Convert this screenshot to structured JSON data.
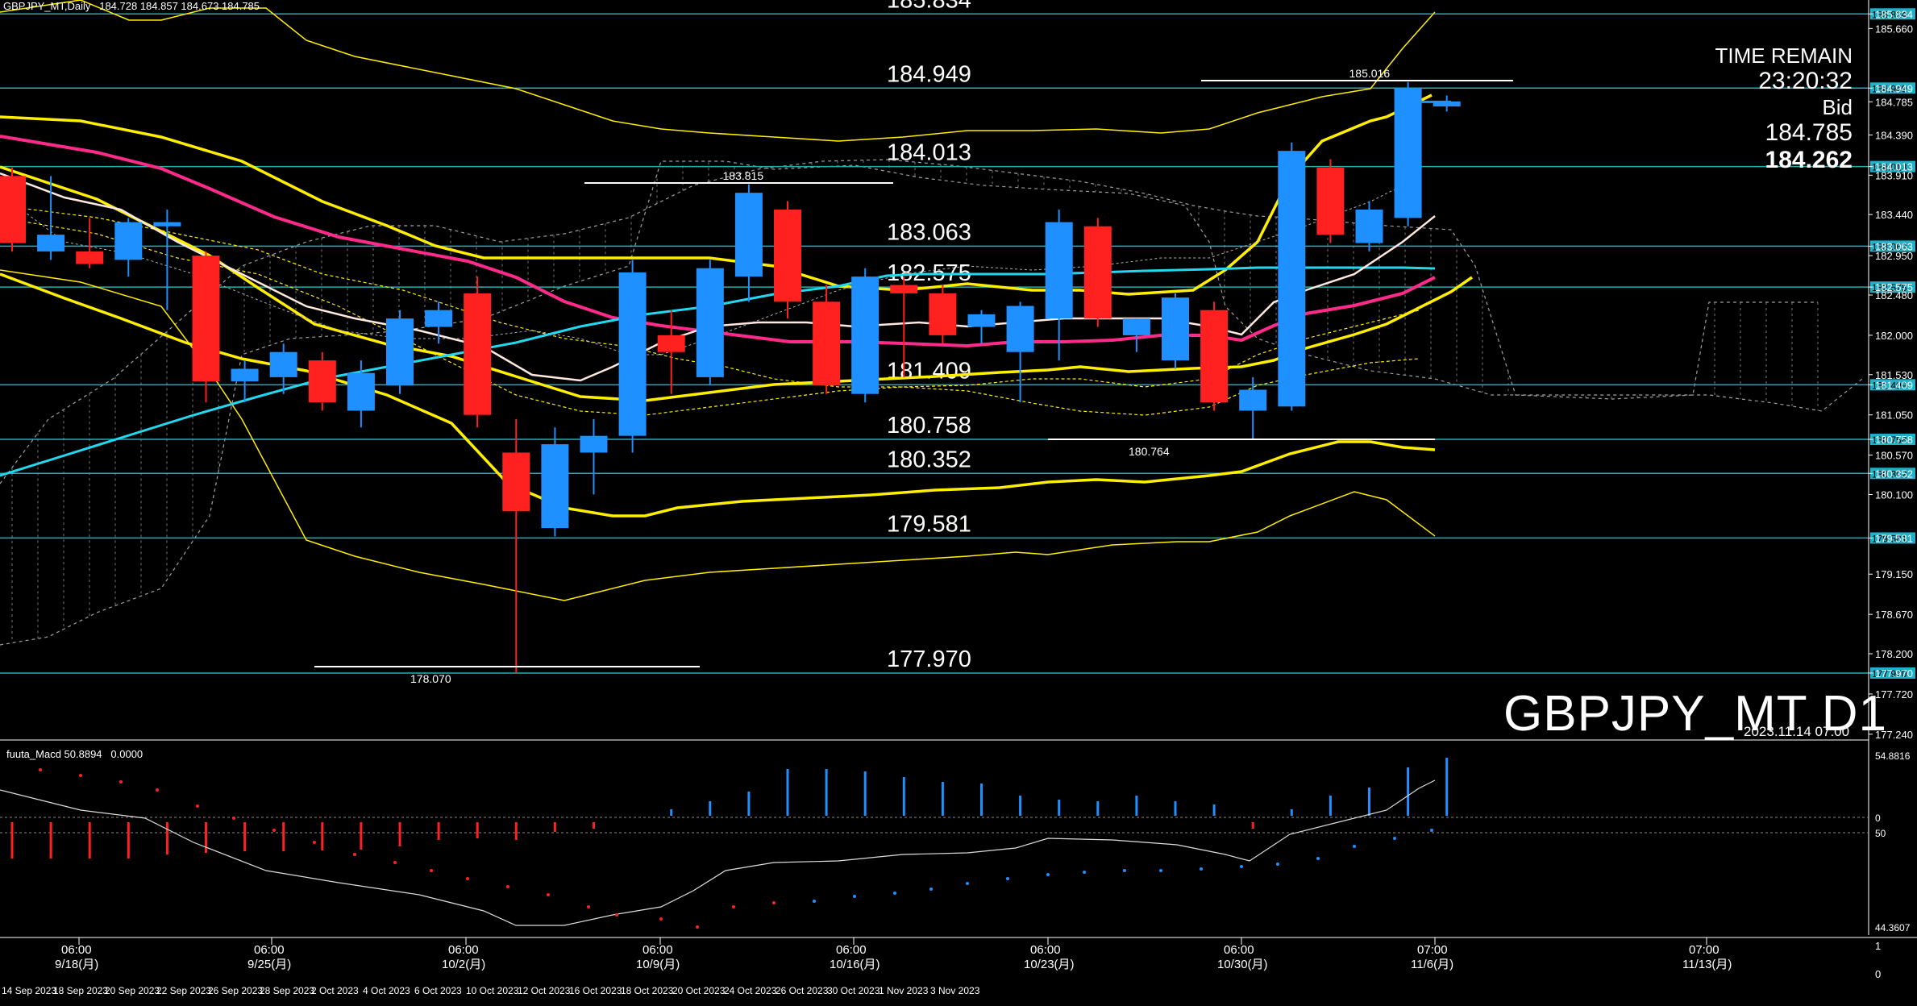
{
  "header": {
    "title": "GBPJPY_MT,Daily",
    "ohlc": "184.728 184.857 184.673 184.785"
  },
  "overlay": {
    "time_remain_label": "TIME REMAIN",
    "time_remain_value": "23:20:32",
    "bid_label": "Bid",
    "bid_value": "184.785",
    "highlight_value": "184.262",
    "symbol_label": "GBPJPY_MT D1",
    "timestamp": "2023.11.14 07:00"
  },
  "macd": {
    "label": "fuuta_Macd 50.8894",
    "value2": "0.0000",
    "scale": [
      "54.8816",
      "0",
      "50",
      "44.3607"
    ]
  },
  "level_lines": [
    {
      "price": 185.834,
      "label": "185.834"
    },
    {
      "price": 184.949,
      "label": "184.949"
    },
    {
      "price": 184.013,
      "label": "184.013"
    },
    {
      "price": 183.063,
      "label": "183.063"
    },
    {
      "price": 182.575,
      "label": "182.575"
    },
    {
      "price": 181.409,
      "label": "181.409"
    },
    {
      "price": 180.758,
      "label": "180.758"
    },
    {
      "price": 180.352,
      "label": "180.352"
    },
    {
      "price": 179.581,
      "label": "179.581"
    },
    {
      "price": 177.97,
      "label": "177.970"
    }
  ],
  "price_axis": [
    "185.834",
    "185.660",
    "184.949",
    "184.785",
    "184.390",
    "184.013",
    "183.910",
    "183.440",
    "183.063",
    "182.950",
    "182.575",
    "182.480",
    "182.000",
    "181.530",
    "181.409",
    "181.050",
    "180.758",
    "180.570",
    "180.352",
    "180.100",
    "179.581",
    "179.150",
    "178.670",
    "178.200",
    "177.970",
    "177.720",
    "177.240"
  ],
  "swing_labels": [
    {
      "label": "185.016"
    },
    {
      "label": "183.815"
    },
    {
      "label": "180.764"
    },
    {
      "label": "178.070"
    }
  ],
  "time_axis": {
    "major": [
      {
        "time": "06:00",
        "date": "9/18(月)"
      },
      {
        "time": "06:00",
        "date": "9/25(月)"
      },
      {
        "time": "06:00",
        "date": "10/2(月)"
      },
      {
        "time": "06:00",
        "date": "10/9(月)"
      },
      {
        "time": "06:00",
        "date": "10/16(月)"
      },
      {
        "time": "06:00",
        "date": "10/23(月)"
      },
      {
        "time": "06:00",
        "date": "10/30(月)"
      },
      {
        "time": "07:00",
        "date": "11/6(月)"
      },
      {
        "time": "07:00",
        "date": "11/13(月)"
      }
    ],
    "minor": [
      "14 Sep 2023",
      "18 Sep 2023",
      "20 Sep 2023",
      "22 Sep 2023",
      "26 Sep 2023",
      "28 Sep 2023",
      "2 Oct 2023",
      "4 Oct 2023",
      "6 Oct 2023",
      "10 Oct 2023",
      "12 Oct 2023",
      "16 Oct 2023",
      "18 Oct 2023",
      "20 Oct 2023",
      "24 Oct 2023",
      "26 Oct 2023",
      "30 Oct 2023",
      "1 Nov 2023",
      "3 Nov 2023"
    ],
    "right_scale": [
      "1",
      "0"
    ]
  },
  "candles": [
    {
      "o": 183.9,
      "h": 184.0,
      "l": 183.0,
      "c": 183.1
    },
    {
      "o": 183.0,
      "h": 183.9,
      "l": 182.9,
      "c": 183.2
    },
    {
      "o": 183.0,
      "h": 183.4,
      "l": 182.8,
      "c": 182.85
    },
    {
      "o": 182.9,
      "h": 183.4,
      "l": 182.7,
      "c": 183.35
    },
    {
      "o": 183.3,
      "h": 183.5,
      "l": 182.3,
      "c": 183.35
    },
    {
      "o": 182.95,
      "h": 183.0,
      "l": 181.2,
      "c": 181.45
    },
    {
      "o": 181.45,
      "h": 181.7,
      "l": 181.2,
      "c": 181.6
    },
    {
      "o": 181.5,
      "h": 181.9,
      "l": 181.3,
      "c": 181.8
    },
    {
      "o": 181.7,
      "h": 181.8,
      "l": 181.1,
      "c": 181.2
    },
    {
      "o": 181.1,
      "h": 181.7,
      "l": 180.9,
      "c": 181.55
    },
    {
      "o": 181.4,
      "h": 182.3,
      "l": 181.3,
      "c": 182.2
    },
    {
      "o": 182.1,
      "h": 182.4,
      "l": 181.9,
      "c": 182.3
    },
    {
      "o": 182.5,
      "h": 182.7,
      "l": 180.9,
      "c": 181.05
    },
    {
      "o": 180.6,
      "h": 181.0,
      "l": 177.97,
      "c": 179.9
    },
    {
      "o": 179.7,
      "h": 180.9,
      "l": 179.6,
      "c": 180.7
    },
    {
      "o": 180.6,
      "h": 181.0,
      "l": 180.1,
      "c": 180.8
    },
    {
      "o": 180.8,
      "h": 182.9,
      "l": 180.6,
      "c": 182.75
    },
    {
      "o": 182.0,
      "h": 182.3,
      "l": 181.3,
      "c": 181.8
    },
    {
      "o": 181.5,
      "h": 182.9,
      "l": 181.4,
      "c": 182.8
    },
    {
      "o": 182.7,
      "h": 183.8,
      "l": 182.4,
      "c": 183.7
    },
    {
      "o": 183.5,
      "h": 183.6,
      "l": 182.2,
      "c": 182.4
    },
    {
      "o": 182.4,
      "h": 182.6,
      "l": 181.3,
      "c": 181.4
    },
    {
      "o": 181.3,
      "h": 182.8,
      "l": 181.2,
      "c": 182.7
    },
    {
      "o": 182.6,
      "h": 182.7,
      "l": 181.5,
      "c": 182.5
    },
    {
      "o": 182.5,
      "h": 182.6,
      "l": 181.9,
      "c": 182.0
    },
    {
      "o": 182.1,
      "h": 182.3,
      "l": 181.9,
      "c": 182.25
    },
    {
      "o": 181.8,
      "h": 182.4,
      "l": 181.2,
      "c": 182.35
    },
    {
      "o": 182.2,
      "h": 183.5,
      "l": 181.7,
      "c": 183.35
    },
    {
      "o": 183.3,
      "h": 183.4,
      "l": 182.1,
      "c": 182.2
    },
    {
      "o": 182.0,
      "h": 182.2,
      "l": 181.8,
      "c": 182.2
    },
    {
      "o": 181.7,
      "h": 182.5,
      "l": 181.6,
      "c": 182.45
    },
    {
      "o": 182.3,
      "h": 182.4,
      "l": 181.1,
      "c": 181.2
    },
    {
      "o": 181.1,
      "h": 181.5,
      "l": 180.76,
      "c": 181.35
    },
    {
      "o": 181.15,
      "h": 184.3,
      "l": 181.1,
      "c": 184.2
    },
    {
      "o": 184.0,
      "h": 184.1,
      "l": 183.1,
      "c": 183.2
    },
    {
      "o": 183.1,
      "h": 183.6,
      "l": 183.0,
      "c": 183.5
    },
    {
      "o": 183.4,
      "h": 185.02,
      "l": 183.3,
      "c": 184.95
    },
    {
      "o": 184.73,
      "h": 184.86,
      "l": 184.67,
      "c": 184.79
    }
  ],
  "colors": {
    "bull": "#1e90ff",
    "bear": "#ff2020",
    "level": "#20b0b0",
    "ma_yellow": "#ffee00",
    "ma_pink": "#ff2a8a",
    "ma_cyan": "#22d8f0",
    "ma_white": "#ffe8e0",
    "cloud": "#a0a0a0",
    "label_bg": "#20b0c8"
  }
}
